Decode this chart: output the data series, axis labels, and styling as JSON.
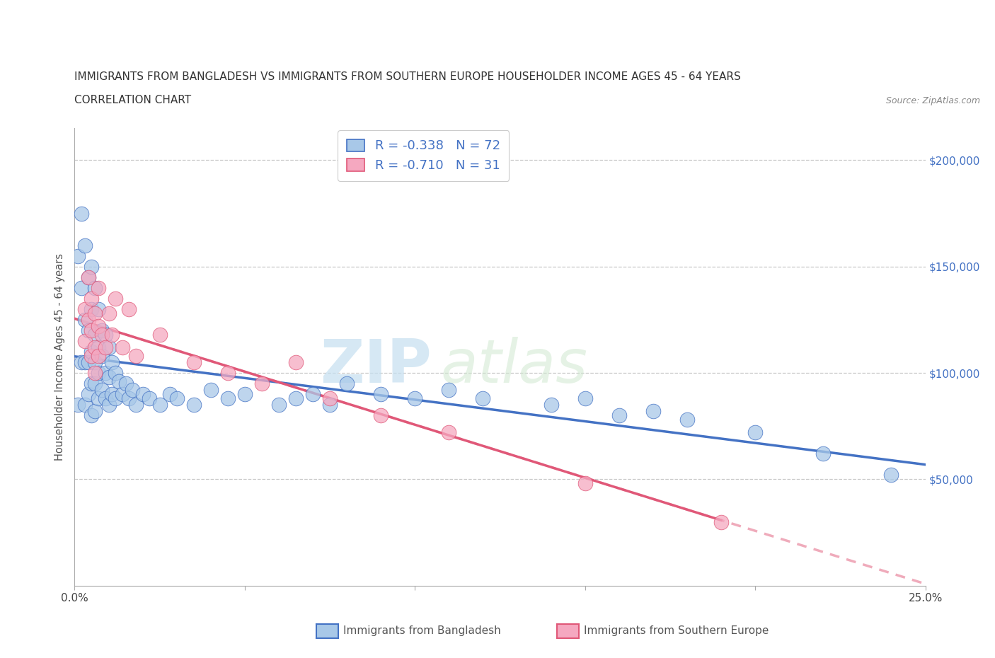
{
  "title_line1": "IMMIGRANTS FROM BANGLADESH VS IMMIGRANTS FROM SOUTHERN EUROPE HOUSEHOLDER INCOME AGES 45 - 64 YEARS",
  "title_line2": "CORRELATION CHART",
  "source_text": "Source: ZipAtlas.com",
  "ylabel": "Householder Income Ages 45 - 64 years",
  "xlim": [
    0.0,
    0.25
  ],
  "ylim": [
    0,
    215000
  ],
  "xticks": [
    0.0,
    0.05,
    0.1,
    0.15,
    0.2,
    0.25
  ],
  "xtick_labels": [
    "0.0%",
    "",
    "",
    "",
    "",
    "25.0%"
  ],
  "ytick_positions": [
    0,
    50000,
    100000,
    150000,
    200000
  ],
  "ytick_labels": [
    "",
    "$50,000",
    "$100,000",
    "$150,000",
    "$200,000"
  ],
  "color_bangladesh": "#a8c8e8",
  "color_southern": "#f5a8c0",
  "color_reg_bangladesh": "#4472c4",
  "color_reg_southern": "#e05878",
  "legend_r1": "R = -0.338",
  "legend_n1": "N = 72",
  "legend_r2": "R = -0.710",
  "legend_n2": "N = 31",
  "watermark_zip": "ZIP",
  "watermark_atlas": "atlas",
  "bg_color": "#ffffff",
  "grid_color": "#c8c8c8",
  "bangladesh_x": [
    0.001,
    0.001,
    0.002,
    0.002,
    0.002,
    0.003,
    0.003,
    0.003,
    0.003,
    0.004,
    0.004,
    0.004,
    0.004,
    0.005,
    0.005,
    0.005,
    0.005,
    0.005,
    0.006,
    0.006,
    0.006,
    0.006,
    0.006,
    0.007,
    0.007,
    0.007,
    0.007,
    0.008,
    0.008,
    0.008,
    0.009,
    0.009,
    0.009,
    0.01,
    0.01,
    0.01,
    0.011,
    0.011,
    0.012,
    0.012,
    0.013,
    0.014,
    0.015,
    0.016,
    0.017,
    0.018,
    0.02,
    0.022,
    0.025,
    0.028,
    0.03,
    0.035,
    0.04,
    0.045,
    0.05,
    0.06,
    0.065,
    0.07,
    0.075,
    0.08,
    0.09,
    0.1,
    0.11,
    0.12,
    0.14,
    0.15,
    0.16,
    0.17,
    0.18,
    0.2,
    0.22,
    0.24
  ],
  "bangladesh_y": [
    155000,
    85000,
    175000,
    140000,
    105000,
    160000,
    125000,
    105000,
    85000,
    145000,
    120000,
    105000,
    90000,
    150000,
    130000,
    110000,
    95000,
    80000,
    140000,
    118000,
    105000,
    95000,
    82000,
    130000,
    112000,
    100000,
    88000,
    120000,
    108000,
    92000,
    118000,
    100000,
    88000,
    112000,
    98000,
    85000,
    105000,
    90000,
    100000,
    88000,
    96000,
    90000,
    95000,
    88000,
    92000,
    85000,
    90000,
    88000,
    85000,
    90000,
    88000,
    85000,
    92000,
    88000,
    90000,
    85000,
    88000,
    90000,
    85000,
    95000,
    90000,
    88000,
    92000,
    88000,
    85000,
    88000,
    80000,
    82000,
    78000,
    72000,
    62000,
    52000
  ],
  "southern_x": [
    0.003,
    0.003,
    0.004,
    0.004,
    0.005,
    0.005,
    0.005,
    0.006,
    0.006,
    0.006,
    0.007,
    0.007,
    0.007,
    0.008,
    0.009,
    0.01,
    0.011,
    0.012,
    0.014,
    0.016,
    0.018,
    0.025,
    0.035,
    0.045,
    0.055,
    0.065,
    0.075,
    0.09,
    0.11,
    0.15,
    0.19
  ],
  "southern_y": [
    130000,
    115000,
    145000,
    125000,
    135000,
    120000,
    108000,
    128000,
    112000,
    100000,
    140000,
    122000,
    108000,
    118000,
    112000,
    128000,
    118000,
    135000,
    112000,
    130000,
    108000,
    118000,
    105000,
    100000,
    95000,
    105000,
    88000,
    80000,
    72000,
    48000,
    30000
  ]
}
